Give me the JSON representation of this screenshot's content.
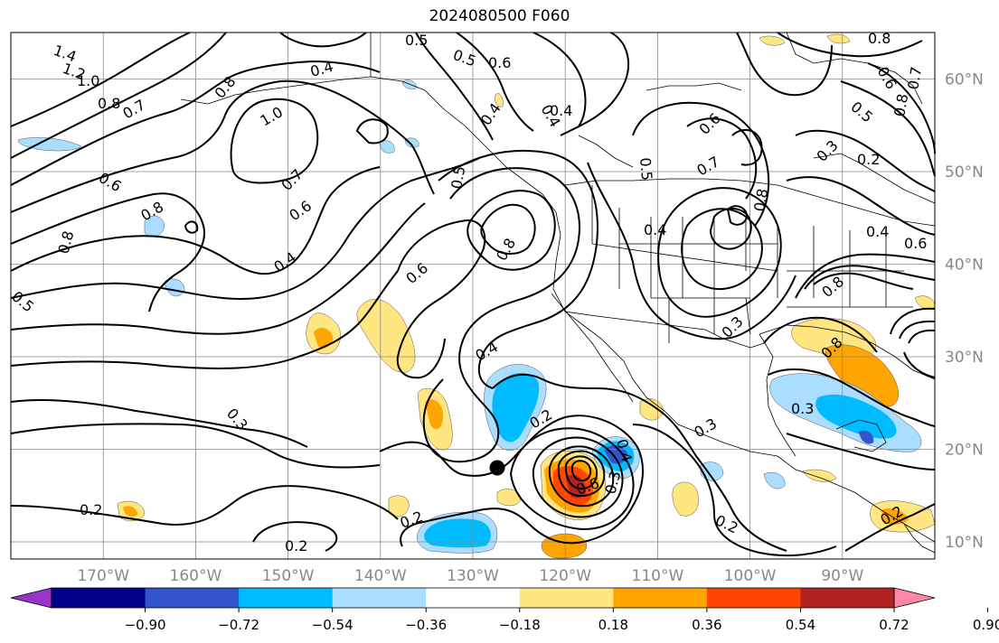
{
  "title": "2024080500 F060",
  "map": {
    "lon_range": [
      -180,
      -80
    ],
    "lat_range": [
      8,
      65
    ],
    "lon_ticks": [
      "170°W",
      "160°W",
      "150°W",
      "140°W",
      "130°W",
      "120°W",
      "110°W",
      "100°W",
      "90°W"
    ],
    "lat_ticks": [
      "60°N",
      "50°N",
      "40°N",
      "30°N",
      "20°N",
      "10°N"
    ],
    "grid": true,
    "contour_labels": [
      {
        "text": "1.4"
      },
      {
        "text": "1.2"
      },
      {
        "text": "1.0"
      },
      {
        "text": "0.8"
      },
      {
        "text": "0.7"
      },
      {
        "text": "0.6"
      },
      {
        "text": "0.5"
      },
      {
        "text": "0.4"
      },
      {
        "text": "0.3"
      },
      {
        "text": "0.2"
      }
    ],
    "storm_marker": {
      "symbol": "black-dot"
    }
  },
  "colorbar": {
    "tick_labels": [
      "−0.90",
      "−0.72",
      "−0.54",
      "−0.36",
      "−0.18",
      "0.18",
      "0.36",
      "0.54",
      "0.72",
      "0.90"
    ],
    "colors": [
      "#9933cc",
      "#00008b",
      "#3355cc",
      "#00bbff",
      "#aaddff",
      "#ffffff",
      "#ffe680",
      "#ffa500",
      "#ff4500",
      "#b22222",
      "#ff88aa"
    ],
    "extend": "both"
  }
}
